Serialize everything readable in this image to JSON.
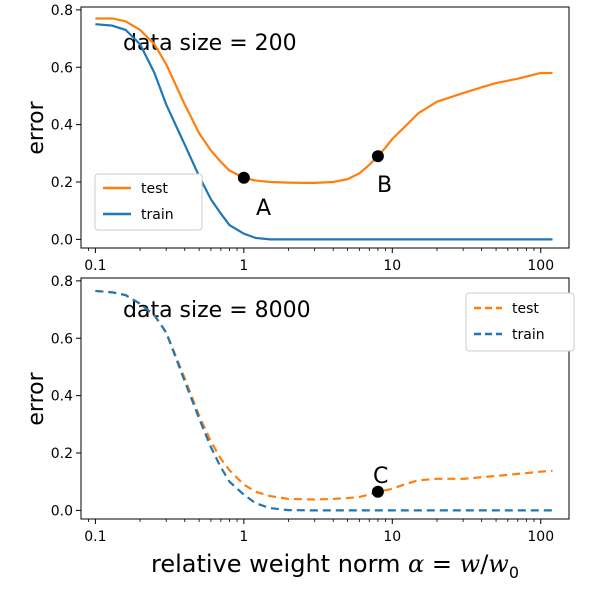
{
  "chart_data": [
    {
      "type": "line",
      "scale_x": "log",
      "ylim": [
        -0.03,
        0.81
      ],
      "xlim": [
        0.08,
        155
      ],
      "x_ticks": [
        0.1,
        1,
        10,
        100
      ],
      "x_tick_labels": [
        "0.1",
        "1",
        "10",
        "100"
      ],
      "y_ticks": [
        0.0,
        0.2,
        0.4,
        0.6,
        0.8
      ],
      "y_tick_labels": [
        "0.0",
        "0.2",
        "0.4",
        "0.6",
        "0.8"
      ],
      "ylabel": "error",
      "xlabel": "",
      "legend_position": "lower-left",
      "series": [
        {
          "name": "test",
          "color": "#ff7f0e",
          "linestyle": "solid",
          "x": [
            0.1,
            0.13,
            0.16,
            0.2,
            0.25,
            0.3,
            0.4,
            0.5,
            0.6,
            0.7,
            0.8,
            1.0,
            1.2,
            1.5,
            2.0,
            2.5,
            3,
            4,
            5,
            6,
            7,
            8,
            9,
            10,
            12,
            15,
            20,
            30,
            40,
            50,
            70,
            100,
            120
          ],
          "values": [
            0.77,
            0.77,
            0.76,
            0.73,
            0.68,
            0.61,
            0.47,
            0.37,
            0.31,
            0.27,
            0.24,
            0.215,
            0.205,
            0.2,
            0.198,
            0.197,
            0.197,
            0.2,
            0.21,
            0.23,
            0.26,
            0.29,
            0.32,
            0.35,
            0.39,
            0.44,
            0.48,
            0.51,
            0.53,
            0.545,
            0.56,
            0.58,
            0.58
          ]
        },
        {
          "name": "train",
          "color": "#1f77b4",
          "linestyle": "solid",
          "x": [
            0.1,
            0.13,
            0.16,
            0.2,
            0.25,
            0.3,
            0.4,
            0.5,
            0.6,
            0.7,
            0.8,
            1.0,
            1.2,
            1.5,
            2.0,
            3,
            5,
            10,
            20,
            50,
            100,
            120
          ],
          "values": [
            0.75,
            0.745,
            0.73,
            0.68,
            0.58,
            0.47,
            0.33,
            0.22,
            0.14,
            0.09,
            0.05,
            0.02,
            0.005,
            0.0,
            0.0,
            0.0,
            0.0,
            0.0,
            0.0,
            0.0,
            0.0,
            0.0
          ]
        }
      ],
      "points": [
        {
          "label": "A",
          "x": 1.0,
          "y": 0.215
        },
        {
          "label": "B",
          "x": 8.0,
          "y": 0.29
        }
      ],
      "annotations": [
        "data size = 200",
        "A",
        "B"
      ]
    },
    {
      "type": "line",
      "scale_x": "log",
      "ylim": [
        -0.03,
        0.81
      ],
      "xlim": [
        0.08,
        155
      ],
      "x_ticks": [
        0.1,
        1,
        10,
        100
      ],
      "x_tick_labels": [
        "0.1",
        "1",
        "10",
        "100"
      ],
      "y_ticks": [
        0.0,
        0.2,
        0.4,
        0.6,
        0.8
      ],
      "y_tick_labels": [
        "0.0",
        "0.2",
        "0.4",
        "0.6",
        "0.8"
      ],
      "ylabel": "error",
      "xlabel": "relative weight norm α = w/w0",
      "legend_position": "upper-right",
      "series": [
        {
          "name": "test",
          "color": "#ff7f0e",
          "linestyle": "dashed",
          "x": [
            0.1,
            0.13,
            0.16,
            0.2,
            0.25,
            0.3,
            0.4,
            0.5,
            0.6,
            0.7,
            0.8,
            1.0,
            1.2,
            1.5,
            2.0,
            3,
            4,
            5,
            6,
            7,
            8,
            10,
            12,
            15,
            20,
            30,
            50,
            100,
            120
          ],
          "values": [
            0.765,
            0.76,
            0.75,
            0.72,
            0.68,
            0.62,
            0.46,
            0.33,
            0.24,
            0.18,
            0.14,
            0.09,
            0.065,
            0.05,
            0.04,
            0.038,
            0.04,
            0.043,
            0.047,
            0.055,
            0.065,
            0.075,
            0.09,
            0.105,
            0.11,
            0.11,
            0.12,
            0.135,
            0.138
          ]
        },
        {
          "name": "train",
          "color": "#1f77b4",
          "linestyle": "dashed",
          "x": [
            0.1,
            0.13,
            0.16,
            0.2,
            0.25,
            0.3,
            0.4,
            0.5,
            0.6,
            0.7,
            0.8,
            1.0,
            1.2,
            1.5,
            2.0,
            3,
            5,
            10,
            20,
            50,
            100,
            120
          ],
          "values": [
            0.765,
            0.76,
            0.75,
            0.72,
            0.68,
            0.62,
            0.45,
            0.32,
            0.22,
            0.15,
            0.1,
            0.055,
            0.025,
            0.008,
            0.001,
            0.0,
            0.0,
            0.0,
            0.0,
            0.0,
            0.0,
            0.0
          ]
        }
      ],
      "points": [
        {
          "label": "C",
          "x": 8.0,
          "y": 0.065
        }
      ],
      "annotations": [
        "data size = 8000",
        "C"
      ]
    }
  ]
}
